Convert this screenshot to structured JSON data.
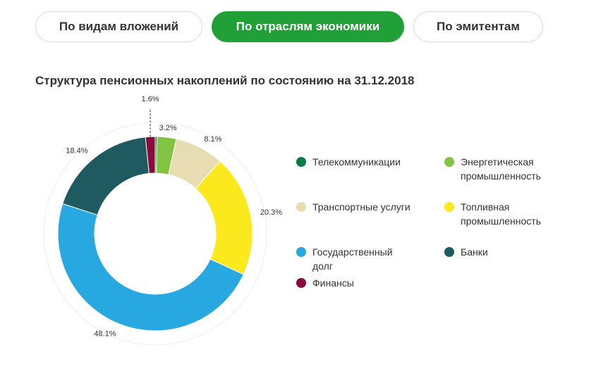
{
  "tabs": [
    {
      "label": "По видам вложений",
      "active": false
    },
    {
      "label": "По отраслям экономики",
      "active": true
    },
    {
      "label": "По эмитентам",
      "active": false
    }
  ],
  "colors": {
    "accent": "#21a038",
    "outer_ring": "#eeeeee"
  },
  "chart_data": {
    "type": "pie",
    "subtype": "donut",
    "title": "Структура пенсионных накоплений по состоянию на 31.12.2018",
    "legend_position": "right",
    "series": [
      {
        "name": "Телекоммуникации",
        "value": 0.3,
        "color": "#0a7a45",
        "label": ""
      },
      {
        "name": "Энергетическая промышленность",
        "value": 3.2,
        "color": "#82c341",
        "label": "3.2%"
      },
      {
        "name": "Транспортные услуги",
        "value": 8.1,
        "color": "#e8dcb2",
        "label": "8.1%"
      },
      {
        "name": "Топливная промышленность",
        "value": 20.3,
        "color": "#fbe91e",
        "label": "20.3%"
      },
      {
        "name": "Государственный долг",
        "value": 48.1,
        "color": "#28a8e0",
        "label": "48.1%"
      },
      {
        "name": "Банки",
        "value": 18.4,
        "color": "#1e5a5f",
        "label": "18.4%"
      },
      {
        "name": "Финансы",
        "value": 1.6,
        "color": "#8b0a3c",
        "label": "1.6%"
      }
    ]
  }
}
